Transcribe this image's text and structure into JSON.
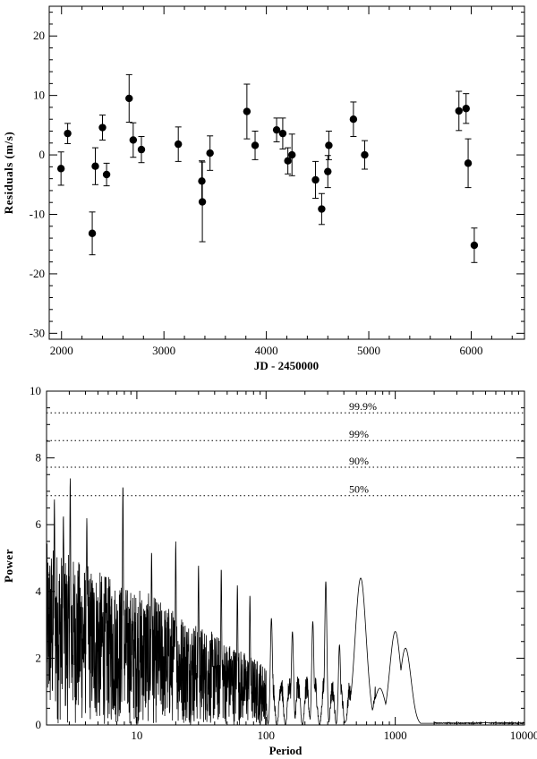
{
  "chart_data": [
    {
      "type": "scatter",
      "title": "",
      "xlabel": "JD - 2450000",
      "ylabel": "Residuals (m/s)",
      "xlim": [
        1880,
        6520
      ],
      "ylim": [
        -31,
        25
      ],
      "xticks": [
        2000,
        3000,
        4000,
        5000,
        6000
      ],
      "yticks": [
        -30,
        -20,
        -10,
        0,
        10,
        20
      ],
      "grid": false,
      "error_bars": true,
      "points": [
        {
          "x": 1995,
          "y": -2.3,
          "err": 2.8
        },
        {
          "x": 2060,
          "y": 3.6,
          "err": 1.7
        },
        {
          "x": 2300,
          "y": -13.2,
          "err": 3.6
        },
        {
          "x": 2330,
          "y": -1.9,
          "err": 3.1
        },
        {
          "x": 2400,
          "y": 4.6,
          "err": 2.1
        },
        {
          "x": 2440,
          "y": -3.3,
          "err": 1.9
        },
        {
          "x": 2660,
          "y": 9.5,
          "err": 4.0
        },
        {
          "x": 2700,
          "y": 2.5,
          "err": 2.9
        },
        {
          "x": 2780,
          "y": 0.9,
          "err": 2.2
        },
        {
          "x": 3140,
          "y": 1.8,
          "err": 2.9
        },
        {
          "x": 3370,
          "y": -4.4,
          "err": 3.4
        },
        {
          "x": 3375,
          "y": -7.9,
          "err": 6.7
        },
        {
          "x": 3450,
          "y": 0.3,
          "err": 2.9
        },
        {
          "x": 3810,
          "y": 7.3,
          "err": 4.6
        },
        {
          "x": 3890,
          "y": 1.6,
          "err": 2.4
        },
        {
          "x": 4100,
          "y": 4.2,
          "err": 2.0
        },
        {
          "x": 4160,
          "y": 3.6,
          "err": 2.6
        },
        {
          "x": 4210,
          "y": -1.0,
          "err": 2.2
        },
        {
          "x": 4250,
          "y": 0.0,
          "err": 3.5
        },
        {
          "x": 4480,
          "y": -4.2,
          "err": 3.1
        },
        {
          "x": 4540,
          "y": -9.1,
          "err": 2.6
        },
        {
          "x": 4600,
          "y": -2.8,
          "err": 2.7
        },
        {
          "x": 4610,
          "y": 1.6,
          "err": 2.4
        },
        {
          "x": 4850,
          "y": 6.0,
          "err": 2.9
        },
        {
          "x": 4960,
          "y": 0.0,
          "err": 2.4
        },
        {
          "x": 5880,
          "y": 7.4,
          "err": 3.3
        },
        {
          "x": 5950,
          "y": 7.8,
          "err": 2.5
        },
        {
          "x": 5970,
          "y": -1.4,
          "err": 4.1
        },
        {
          "x": 6030,
          "y": -15.2,
          "err": 2.9
        }
      ]
    },
    {
      "type": "line",
      "title": "",
      "xlabel": "Period",
      "ylabel": "Power",
      "x_scale": "log",
      "xlim": [
        2,
        10000
      ],
      "ylim": [
        0,
        10
      ],
      "xticks": [
        10,
        100,
        1000,
        10000
      ],
      "xtick_labels": [
        "10",
        "100",
        "1000",
        "10000"
      ],
      "yticks": [
        0,
        2,
        4,
        6,
        8,
        10
      ],
      "grid": false,
      "fap_levels": [
        {
          "label": "99.9%",
          "value": 9.35
        },
        {
          "label": "99%",
          "value": 8.52
        },
        {
          "label": "90%",
          "value": 7.72
        },
        {
          "label": "50%",
          "value": 6.87
        }
      ],
      "peaks": [
        {
          "x": 2.3,
          "y": 6.8
        },
        {
          "x": 2.7,
          "y": 6.3
        },
        {
          "x": 3.05,
          "y": 7.4
        },
        {
          "x": 4.1,
          "y": 6.2
        },
        {
          "x": 7.8,
          "y": 7.2
        },
        {
          "x": 13,
          "y": 5.2
        },
        {
          "x": 20,
          "y": 5.5
        },
        {
          "x": 30,
          "y": 4.8
        },
        {
          "x": 45,
          "y": 4.7
        },
        {
          "x": 60,
          "y": 4.2
        },
        {
          "x": 75,
          "y": 3.9
        },
        {
          "x": 110,
          "y": 3.2
        },
        {
          "x": 160,
          "y": 2.8
        },
        {
          "x": 230,
          "y": 3.1
        },
        {
          "x": 290,
          "y": 4.3
        },
        {
          "x": 370,
          "y": 2.4
        },
        {
          "x": 540,
          "y": 4.4
        },
        {
          "x": 760,
          "y": 1.1
        },
        {
          "x": 1000,
          "y": 2.8
        },
        {
          "x": 1200,
          "y": 2.3
        },
        {
          "x": 2000,
          "y": 0.05
        },
        {
          "x": 5000,
          "y": 0.07
        }
      ]
    }
  ]
}
